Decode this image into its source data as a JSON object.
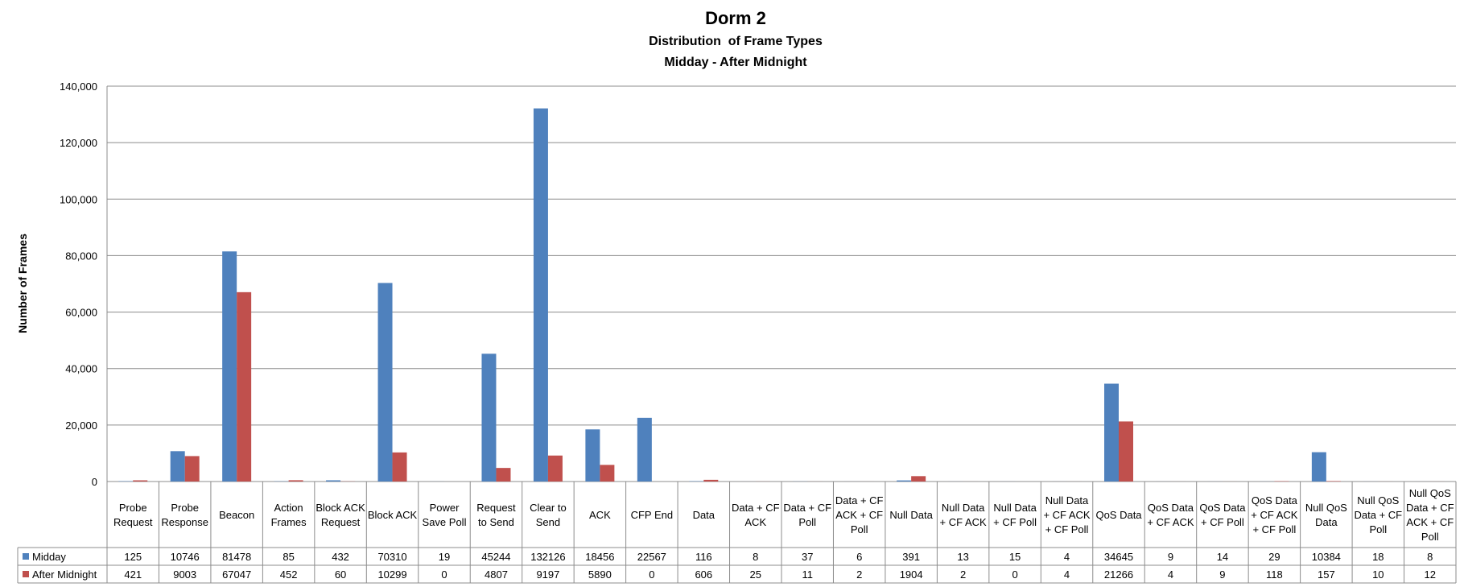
{
  "chart_data": {
    "type": "bar",
    "title": "Dorm 2",
    "subtitle_lines": [
      "Distribution  of Frame Types",
      "Midday - After Midnight"
    ],
    "ylabel": "Number of Frames",
    "xlabel": "",
    "ylim": [
      0,
      140000
    ],
    "y_ticks": [
      0,
      20000,
      40000,
      60000,
      80000,
      100000,
      120000,
      140000
    ],
    "y_tick_labels": [
      "0",
      "20,000",
      "40,000",
      "60,000",
      "80,000",
      "100,000",
      "120,000",
      "140,000"
    ],
    "grid": true,
    "legend": "data table below chart",
    "categories": [
      [
        "Probe",
        "Request"
      ],
      [
        "Probe",
        "Response"
      ],
      [
        "Beacon"
      ],
      [
        "Action",
        "Frames"
      ],
      [
        "Block ACK",
        "Request"
      ],
      [
        "Block ACK"
      ],
      [
        "Power",
        "Save Poll"
      ],
      [
        "Request",
        "to Send"
      ],
      [
        "Clear to",
        "Send"
      ],
      [
        "ACK"
      ],
      [
        "CFP End"
      ],
      [
        "Data"
      ],
      [
        "Data + CF",
        "ACK"
      ],
      [
        "Data + CF",
        "Poll"
      ],
      [
        "Data + CF",
        "ACK + CF",
        "Poll"
      ],
      [
        "Null Data"
      ],
      [
        "Null Data",
        "+ CF ACK"
      ],
      [
        "Null Data",
        "+ CF Poll"
      ],
      [
        "Null Data",
        "+ CF ACK",
        "+ CF Poll"
      ],
      [
        "QoS Data"
      ],
      [
        "QoS Data",
        "+ CF ACK"
      ],
      [
        "QoS Data",
        "+ CF Poll"
      ],
      [
        "QoS Data",
        "+ CF ACK",
        "+ CF Poll"
      ],
      [
        "Null QoS",
        "Data"
      ],
      [
        "Null QoS",
        "Data + CF",
        "Poll"
      ],
      [
        "Null QoS",
        "Data + CF",
        "ACK + CF",
        "Poll"
      ]
    ],
    "series": [
      {
        "name": "Midday",
        "color": "#4F81BD",
        "values": [
          125,
          10746,
          81478,
          85,
          432,
          70310,
          19,
          45244,
          132126,
          18456,
          22567,
          116,
          8,
          37,
          6,
          391,
          13,
          15,
          4,
          34645,
          9,
          14,
          29,
          10384,
          18,
          8
        ]
      },
      {
        "name": "After Midnight",
        "color": "#C0504D",
        "values": [
          421,
          9003,
          67047,
          452,
          60,
          10299,
          0,
          4807,
          9197,
          5890,
          0,
          606,
          25,
          11,
          2,
          1904,
          2,
          0,
          4,
          21266,
          4,
          9,
          118,
          157,
          10,
          12
        ]
      }
    ]
  }
}
